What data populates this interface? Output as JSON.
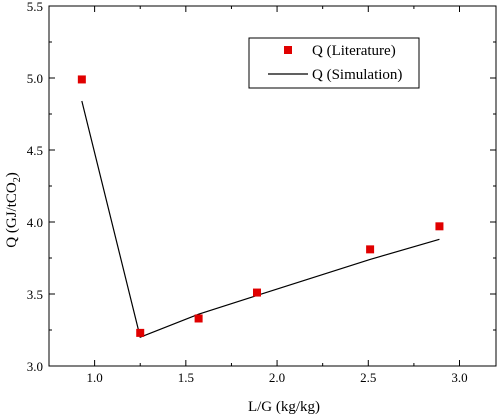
{
  "chart_data": {
    "type": "line",
    "xlabel": "L/G (kg/kg)",
    "ylabel_main": "Q (GJ/tCO",
    "ylabel_sub": "2",
    "ylabel_close": ")",
    "xlim": [
      0.75,
      3.2
    ],
    "ylim": [
      3.0,
      5.5
    ],
    "x_ticks": [
      1.0,
      1.5,
      2.0,
      2.5,
      3.0
    ],
    "x_tick_labels": [
      "1.0",
      "1.5",
      "2.0",
      "2.5",
      "3.0"
    ],
    "y_ticks": [
      3.0,
      3.5,
      4.0,
      4.5,
      5.0,
      5.5
    ],
    "y_tick_labels": [
      "3.0",
      "3.5",
      "4.0",
      "4.5",
      "5.0",
      "5.5"
    ],
    "grid": false,
    "legend_position": "top-right",
    "series": [
      {
        "name": "Q (Literature)",
        "kind": "marker",
        "marker": "square",
        "color": "#e00000",
        "x": [
          0.93,
          1.25,
          1.57,
          1.89,
          2.51,
          2.89
        ],
        "y": [
          4.99,
          3.23,
          3.33,
          3.51,
          3.81,
          3.97
        ]
      },
      {
        "name": "Q (Simulation)",
        "kind": "line",
        "color": "#000000",
        "x": [
          0.93,
          1.25,
          1.57,
          1.89,
          2.51,
          2.89
        ],
        "y": [
          4.84,
          3.2,
          3.36,
          3.49,
          3.74,
          3.88
        ]
      }
    ]
  }
}
